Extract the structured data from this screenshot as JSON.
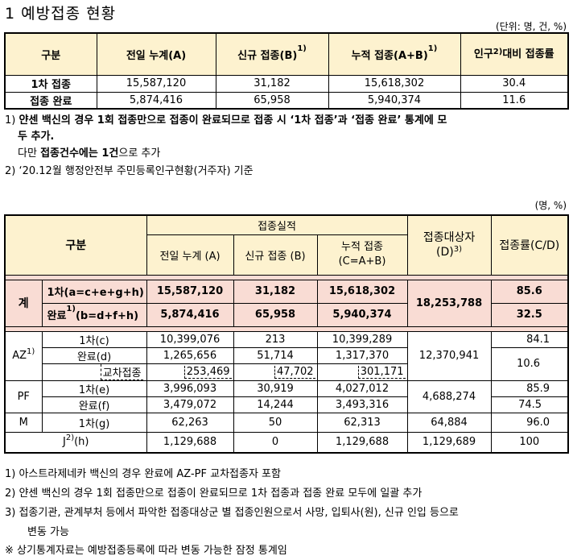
{
  "title": "1  예방접종 현황",
  "table1": {
    "unit": "(단위: 명, 건, %)",
    "headers": [
      "구분",
      "전일  누계(A)",
      "신규  접종(B)",
      "누적  접종(A+B)",
      "인구",
      "대비  접종률"
    ],
    "header_sups": [
      "1)",
      "1)",
      "2)"
    ],
    "rows": [
      {
        "label": "1차 접종",
        "values": [
          "15,587,120",
          "31,182",
          "15,618,302",
          "30.4"
        ]
      },
      {
        "label": "접종 완료",
        "values": [
          "5,874,416",
          "65,958",
          "5,940,374",
          "11.6"
        ]
      }
    ]
  },
  "notes1": {
    "n1_num": "1)",
    "n1_a": "얀센 백신의 경우 ",
    "n1_b": "1회 접종만으로 접종이 완료",
    "n1_c": "되므로 접종 시 ‘",
    "n1_d": "1차 접종",
    "n1_e": "’과 ‘",
    "n1_f": "접종 완료",
    "n1_g": "’ 통계에 모",
    "n1_h": "두 추가.",
    "n1_i": "다만 ",
    "n1_j": "접종건수에는 1건",
    "n1_k": "으로 추가",
    "n2": "2) ‘20.12월 행정안전부 주민등록인구현황(거주자) 기준"
  },
  "table2": {
    "unit": "(명, %)",
    "h_gubun": "구분",
    "h_perf": "접종실적",
    "h_prev": "전일 누계 (A)",
    "h_new": "신규 접종 (B)",
    "h_cum1": "누적 접종",
    "h_cum2": "(C=A+B)",
    "h_target1": "접종대상자",
    "h_target2": "(D)",
    "h_target_sup": "3)",
    "h_rate": "접종률(C/D)",
    "total": {
      "label": "계",
      "r1": {
        "label": "1차(a=c+e+g+h)",
        "prev": "15,587,120",
        "new": "31,182",
        "cum": "15,618,302",
        "rate": "85.6"
      },
      "r2": {
        "label_a": "완료",
        "label_sup": "1)",
        "label_b": "(b=d+f+h)",
        "prev": "5,874,416",
        "new": "65,958",
        "cum": "5,940,374",
        "rate": "32.5"
      },
      "target": "18,253,788"
    },
    "az": {
      "label": "AZ",
      "sup": "1)",
      "r1": {
        "label": "1차(c)",
        "prev": "10,399,076",
        "new": "213",
        "cum": "10,399,289",
        "rate": "84.1"
      },
      "r2": {
        "label": "완료(d)",
        "prev": "1,265,656",
        "new": "51,714",
        "cum": "1,317,370",
        "rate": "10.6"
      },
      "r3": {
        "label": "교차접종",
        "prev": "253,469",
        "new": "47,702",
        "cum": "301,171"
      },
      "target": "12,370,941"
    },
    "pf": {
      "label": "PF",
      "r1": {
        "label": "1차(e)",
        "prev": "3,996,093",
        "new": "30,919",
        "cum": "4,027,012",
        "rate": "85.9"
      },
      "r2": {
        "label": "완료(f)",
        "prev": "3,479,072",
        "new": "14,244",
        "cum": "3,493,316",
        "rate": "74.5"
      },
      "target": "4,688,274"
    },
    "m": {
      "label": "M",
      "sub": "1차(g)",
      "prev": "62,263",
      "new": "50",
      "cum": "62,313",
      "target": "64,884",
      "rate": "96.0"
    },
    "j": {
      "label": "J",
      "sup": "2)",
      "sub": "(h)",
      "prev": "1,129,688",
      "new": "0",
      "cum": "1,129,688",
      "target": "1,129,689",
      "rate": "100"
    }
  },
  "notes2": [
    "1) 아스트라제네카 백신의 경우 완료에 AZ-PF 교차접종자 포함",
    "2) 얀센 백신의 경우 1회 접종만으로 접종이 완료되므로 1차 접종과 접종 완료 모두에 일괄 추가",
    "3) 접종기관, 관계부처 등에서 파악한 접종대상군 별 접종인원으로서 사망, 입퇴사(원), 신규 인입 등으로",
    "변동 가능",
    "※ 상기통계자료는 예방접종등록에 따라 변동 가능한 잠정 통계임"
  ]
}
